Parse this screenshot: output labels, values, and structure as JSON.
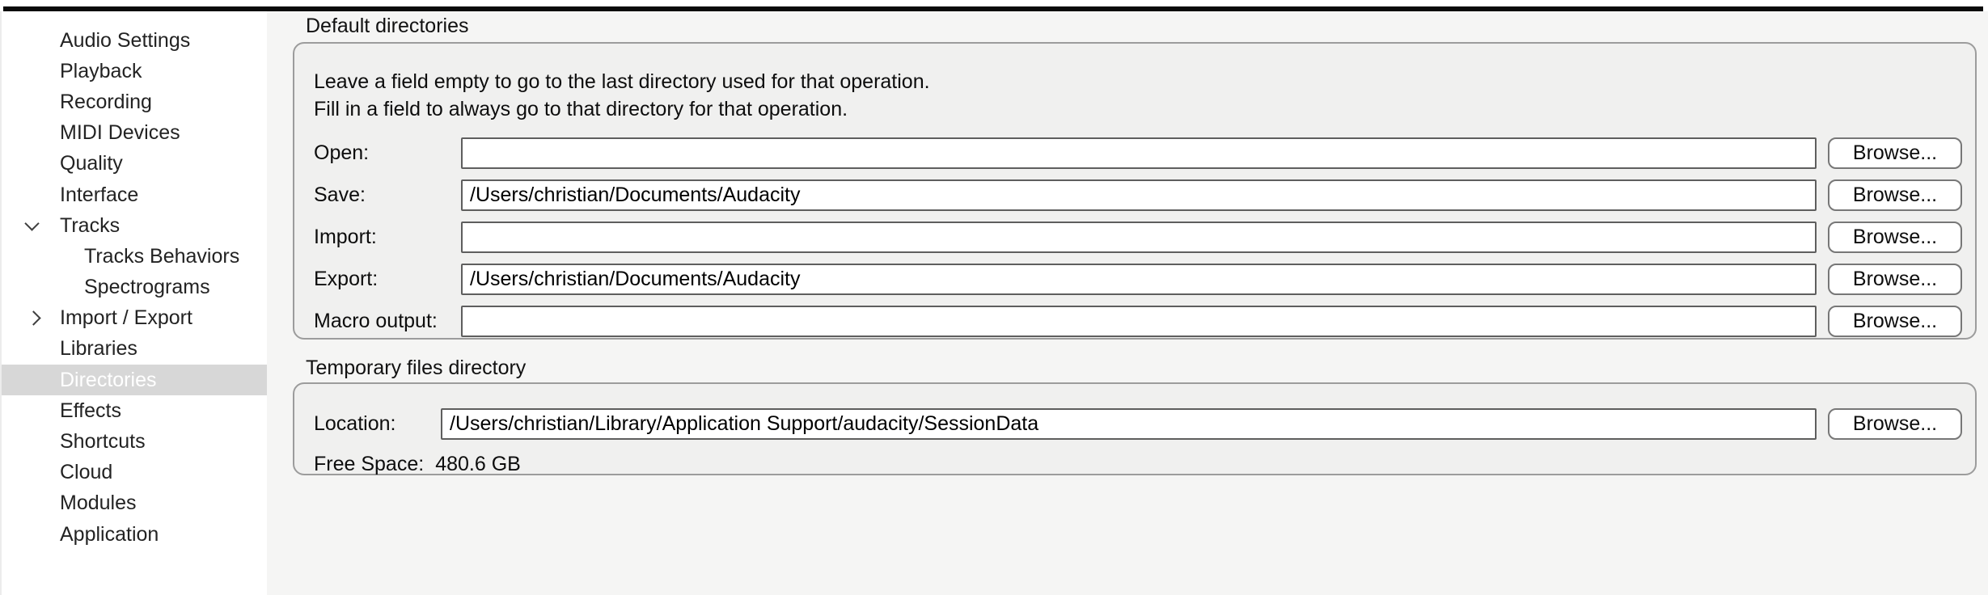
{
  "colors": {
    "panel_background": "#f5f5f4",
    "groupbox_background": "#f0f0ef",
    "groupbox_border": "#9c9c9c",
    "sidebar_background": "#ffffff",
    "sidebar_selected_background": "#d7d7d7",
    "sidebar_selected_text": "#ffffff",
    "field_border": "#5e5e5e",
    "divider_bar": "#0a0a0a"
  },
  "sidebar": {
    "items": [
      {
        "label": "Audio Settings",
        "level": "top",
        "selected": false
      },
      {
        "label": "Playback",
        "level": "top",
        "selected": false
      },
      {
        "label": "Recording",
        "level": "top",
        "selected": false
      },
      {
        "label": "MIDI Devices",
        "level": "top",
        "selected": false
      },
      {
        "label": "Quality",
        "level": "top",
        "selected": false
      },
      {
        "label": "Interface",
        "level": "top",
        "selected": false
      },
      {
        "label": "Tracks",
        "level": "top",
        "selected": false,
        "chevron": "chevron-down-icon",
        "expanded": true
      },
      {
        "label": "Tracks Behaviors",
        "level": "sub",
        "selected": false
      },
      {
        "label": "Spectrograms",
        "level": "sub",
        "selected": false
      },
      {
        "label": "Import / Export",
        "level": "top",
        "selected": false,
        "chevron": "chevron-right-icon",
        "expanded": false
      },
      {
        "label": "Libraries",
        "level": "top",
        "selected": false
      },
      {
        "label": "Directories",
        "level": "top",
        "selected": true
      },
      {
        "label": "Effects",
        "level": "top",
        "selected": false
      },
      {
        "label": "Shortcuts",
        "level": "top",
        "selected": false
      },
      {
        "label": "Cloud",
        "level": "top",
        "selected": false
      },
      {
        "label": "Modules",
        "level": "top",
        "selected": false
      },
      {
        "label": "Application",
        "level": "top",
        "selected": false
      }
    ]
  },
  "main": {
    "browse_label": "Browse...",
    "default_directories": {
      "section_label": "Default directories",
      "hint_line1": "Leave a field empty to go to the last directory used for that operation.",
      "hint_line2": "Fill in a field to always go to that directory for that operation.",
      "fields": [
        {
          "label": "Open:",
          "value": ""
        },
        {
          "label": "Save:",
          "value": "/Users/christian/Documents/Audacity"
        },
        {
          "label": "Import:",
          "value": ""
        },
        {
          "label": "Export:",
          "value": "/Users/christian/Documents/Audacity"
        },
        {
          "label": "Macro output:",
          "value": ""
        }
      ]
    },
    "temporary_files": {
      "section_label": "Temporary files directory",
      "location_label": "Location:",
      "location_value": "/Users/christian/Library/Application Support/audacity/SessionData",
      "free_space_label": "Free Space:",
      "free_space_value": "480.6 GB"
    }
  }
}
